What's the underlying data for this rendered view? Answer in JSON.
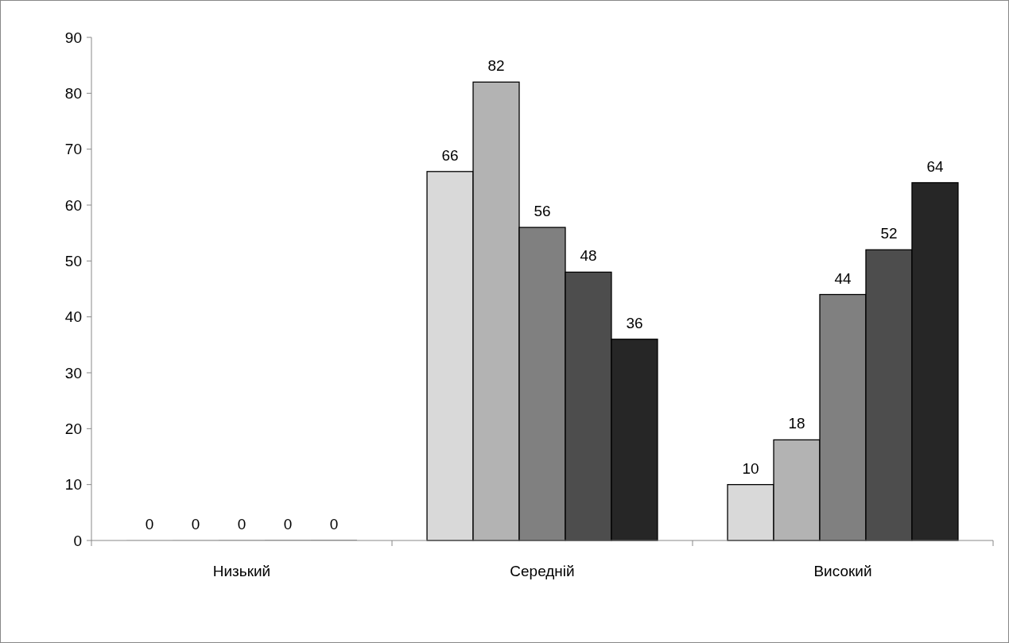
{
  "chart_data": {
    "type": "bar",
    "categories": [
      "Низький",
      "Середній",
      "Високий"
    ],
    "series": [
      {
        "color": "#d9d9d9",
        "values": [
          0,
          66,
          10
        ]
      },
      {
        "color": "#b3b3b3",
        "values": [
          0,
          82,
          18
        ]
      },
      {
        "color": "#808080",
        "values": [
          0,
          56,
          44
        ]
      },
      {
        "color": "#4d4d4d",
        "values": [
          0,
          48,
          52
        ]
      },
      {
        "color": "#262626",
        "values": [
          0,
          36,
          64
        ]
      }
    ],
    "ylim": [
      0,
      90
    ],
    "yticks": [
      0,
      10,
      20,
      30,
      40,
      50,
      60,
      70,
      80,
      90
    ],
    "data_labels": true,
    "grid": false
  }
}
